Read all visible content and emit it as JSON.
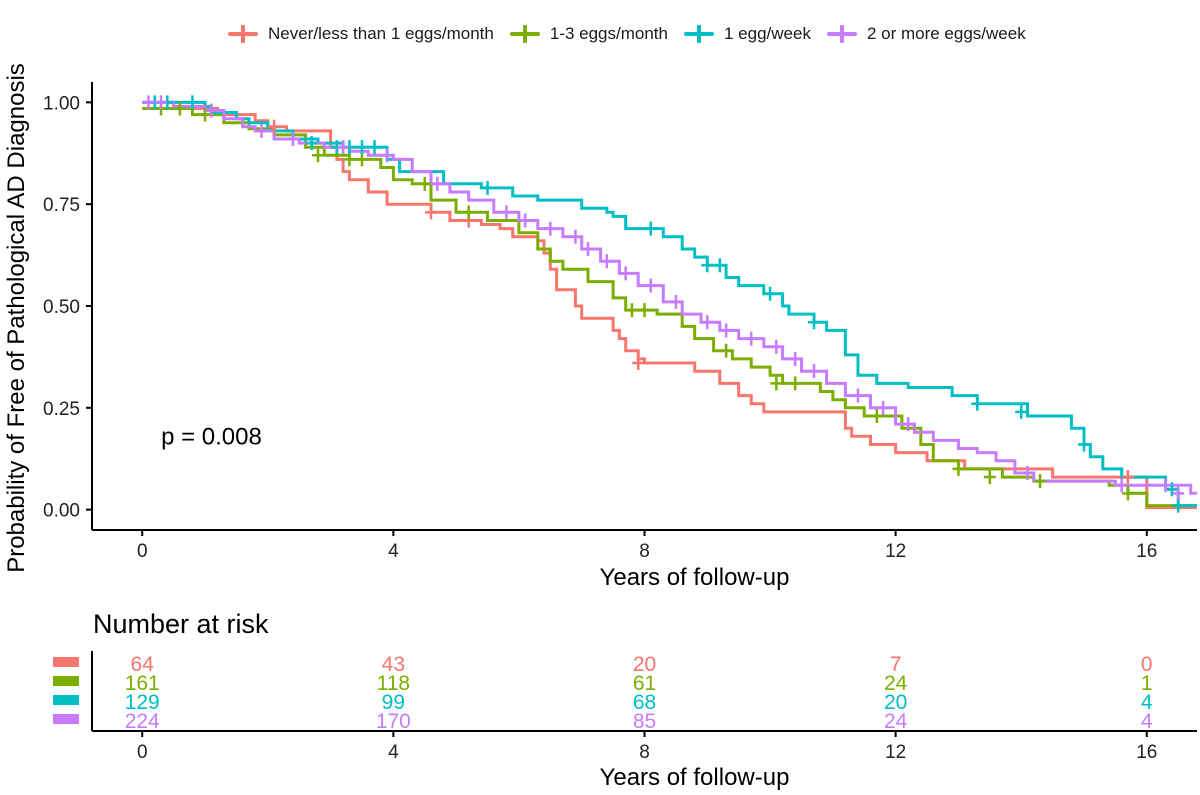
{
  "legend": {
    "items": [
      {
        "label": "Never/less than 1 eggs/month",
        "color": "#F8766D"
      },
      {
        "label": "1-3 eggs/month",
        "color": "#7CAE00"
      },
      {
        "label": "1 egg/week",
        "color": "#00BFC4"
      },
      {
        "label": "2 or more eggs/week",
        "color": "#C77CFF"
      }
    ]
  },
  "chart_data": {
    "type": "line",
    "subtype": "kaplan-meier step curves with censor marks",
    "ylabel": "Probability of Free of Pathological AD Diagnosis",
    "xlabel": "Years of follow-up",
    "xlim": [
      -0.8,
      16.8
    ],
    "ylim": [
      -0.05,
      1.05
    ],
    "x_ticks": [
      "0",
      "4",
      "8",
      "12",
      "16"
    ],
    "y_ticks": [
      "0.00",
      "0.25",
      "0.50",
      "0.75",
      "1.00"
    ],
    "annotation": "p = 0.008",
    "series": [
      {
        "name": "Never/less than 1 eggs/month",
        "color": "#F8766D",
        "steps": [
          [
            0,
            1.0
          ],
          [
            0.6,
            0.985
          ],
          [
            1.2,
            0.97
          ],
          [
            1.8,
            0.955
          ],
          [
            2.0,
            0.94
          ],
          [
            2.3,
            0.93
          ],
          [
            3.0,
            0.89
          ],
          [
            3.1,
            0.86
          ],
          [
            3.2,
            0.83
          ],
          [
            3.3,
            0.81
          ],
          [
            3.6,
            0.78
          ],
          [
            3.9,
            0.75
          ],
          [
            4.6,
            0.73
          ],
          [
            4.9,
            0.71
          ],
          [
            5.4,
            0.7
          ],
          [
            5.7,
            0.69
          ],
          [
            5.9,
            0.67
          ],
          [
            6.3,
            0.66
          ],
          [
            6.4,
            0.63
          ],
          [
            6.5,
            0.59
          ],
          [
            6.6,
            0.54
          ],
          [
            6.9,
            0.5
          ],
          [
            7.0,
            0.47
          ],
          [
            7.5,
            0.44
          ],
          [
            7.6,
            0.42
          ],
          [
            7.7,
            0.39
          ],
          [
            7.9,
            0.37
          ],
          [
            8.0,
            0.36
          ],
          [
            8.8,
            0.34
          ],
          [
            9.2,
            0.31
          ],
          [
            9.5,
            0.28
          ],
          [
            9.7,
            0.26
          ],
          [
            9.9,
            0.24
          ],
          [
            10.5,
            0.24
          ],
          [
            11.2,
            0.2
          ],
          [
            11.3,
            0.18
          ],
          [
            11.6,
            0.16
          ],
          [
            12.0,
            0.14
          ],
          [
            12.5,
            0.12
          ],
          [
            13.1,
            0.1
          ],
          [
            13.8,
            0.1
          ],
          [
            14.5,
            0.08
          ],
          [
            15.5,
            0.08
          ],
          [
            16.0,
            0.005
          ],
          [
            16.8,
            0.005
          ]
        ],
        "censors": [
          [
            2.1,
            0.94
          ],
          [
            4.6,
            0.73
          ],
          [
            5.2,
            0.71
          ],
          [
            7.9,
            0.36
          ],
          [
            15.7,
            0.08
          ]
        ]
      },
      {
        "name": "1-3 eggs/month",
        "color": "#7CAE00",
        "steps": [
          [
            0,
            0.985
          ],
          [
            0.8,
            0.97
          ],
          [
            1.3,
            0.95
          ],
          [
            1.7,
            0.935
          ],
          [
            2.1,
            0.92
          ],
          [
            2.6,
            0.89
          ],
          [
            2.9,
            0.87
          ],
          [
            3.3,
            0.86
          ],
          [
            3.8,
            0.84
          ],
          [
            4.0,
            0.81
          ],
          [
            4.3,
            0.8
          ],
          [
            4.6,
            0.76
          ],
          [
            5.0,
            0.73
          ],
          [
            5.5,
            0.71
          ],
          [
            6.0,
            0.68
          ],
          [
            6.3,
            0.64
          ],
          [
            6.5,
            0.61
          ],
          [
            6.7,
            0.59
          ],
          [
            7.1,
            0.56
          ],
          [
            7.5,
            0.52
          ],
          [
            7.7,
            0.49
          ],
          [
            8.2,
            0.48
          ],
          [
            8.6,
            0.45
          ],
          [
            8.8,
            0.42
          ],
          [
            9.1,
            0.39
          ],
          [
            9.4,
            0.37
          ],
          [
            9.7,
            0.35
          ],
          [
            10.0,
            0.33
          ],
          [
            10.2,
            0.31
          ],
          [
            10.8,
            0.29
          ],
          [
            11.0,
            0.27
          ],
          [
            11.2,
            0.25
          ],
          [
            11.5,
            0.23
          ],
          [
            11.8,
            0.23
          ],
          [
            12.1,
            0.2
          ],
          [
            12.4,
            0.16
          ],
          [
            12.6,
            0.12
          ],
          [
            13.0,
            0.1
          ],
          [
            13.4,
            0.1
          ],
          [
            13.7,
            0.08
          ],
          [
            14.2,
            0.07
          ],
          [
            15.4,
            0.06
          ],
          [
            15.7,
            0.04
          ],
          [
            16.0,
            0.01
          ],
          [
            16.8,
            0.01
          ]
        ],
        "censors": [
          [
            0.3,
            0.985
          ],
          [
            0.6,
            0.985
          ],
          [
            1.0,
            0.97
          ],
          [
            2.8,
            0.87
          ],
          [
            3.3,
            0.86
          ],
          [
            3.5,
            0.86
          ],
          [
            4.5,
            0.8
          ],
          [
            5.2,
            0.73
          ],
          [
            7.8,
            0.49
          ],
          [
            8.0,
            0.49
          ],
          [
            9.3,
            0.39
          ],
          [
            10.1,
            0.31
          ],
          [
            10.4,
            0.31
          ],
          [
            11.7,
            0.23
          ],
          [
            13.0,
            0.1
          ],
          [
            13.5,
            0.08
          ],
          [
            14.3,
            0.07
          ],
          [
            15.7,
            0.04
          ]
        ]
      },
      {
        "name": "1 egg/week",
        "color": "#00BFC4",
        "steps": [
          [
            0,
            1.0
          ],
          [
            1.0,
            0.99
          ],
          [
            1.1,
            0.975
          ],
          [
            1.5,
            0.96
          ],
          [
            1.7,
            0.95
          ],
          [
            2.0,
            0.93
          ],
          [
            2.4,
            0.91
          ],
          [
            2.8,
            0.9
          ],
          [
            3.2,
            0.89
          ],
          [
            3.9,
            0.86
          ],
          [
            4.1,
            0.83
          ],
          [
            4.8,
            0.8
          ],
          [
            5.4,
            0.79
          ],
          [
            5.9,
            0.77
          ],
          [
            6.3,
            0.76
          ],
          [
            7.0,
            0.74
          ],
          [
            7.4,
            0.73
          ],
          [
            7.5,
            0.72
          ],
          [
            7.7,
            0.69
          ],
          [
            8.3,
            0.67
          ],
          [
            8.6,
            0.64
          ],
          [
            8.8,
            0.62
          ],
          [
            9.0,
            0.6
          ],
          [
            9.3,
            0.57
          ],
          [
            9.5,
            0.55
          ],
          [
            9.9,
            0.53
          ],
          [
            10.2,
            0.5
          ],
          [
            10.3,
            0.48
          ],
          [
            10.7,
            0.46
          ],
          [
            10.9,
            0.44
          ],
          [
            11.2,
            0.38
          ],
          [
            11.4,
            0.33
          ],
          [
            11.7,
            0.31
          ],
          [
            12.2,
            0.3
          ],
          [
            12.9,
            0.28
          ],
          [
            13.3,
            0.26
          ],
          [
            14.1,
            0.23
          ],
          [
            14.8,
            0.2
          ],
          [
            15.0,
            0.16
          ],
          [
            15.1,
            0.13
          ],
          [
            15.3,
            0.1
          ],
          [
            15.6,
            0.08
          ],
          [
            16.3,
            0.05
          ],
          [
            16.5,
            0.01
          ],
          [
            16.8,
            0.01
          ]
        ],
        "censors": [
          [
            0.2,
            1.0
          ],
          [
            0.4,
            1.0
          ],
          [
            0.8,
            1.0
          ],
          [
            2.7,
            0.9
          ],
          [
            3.1,
            0.89
          ],
          [
            3.3,
            0.89
          ],
          [
            3.5,
            0.89
          ],
          [
            3.7,
            0.89
          ],
          [
            5.5,
            0.79
          ],
          [
            8.1,
            0.69
          ],
          [
            9.0,
            0.6
          ],
          [
            9.2,
            0.6
          ],
          [
            10.0,
            0.53
          ],
          [
            10.7,
            0.46
          ],
          [
            13.3,
            0.26
          ],
          [
            14.0,
            0.24
          ],
          [
            15.0,
            0.16
          ],
          [
            16.4,
            0.05
          ],
          [
            16.5,
            0.01
          ]
        ]
      },
      {
        "name": "2 or more eggs/week",
        "color": "#C77CFF",
        "steps": [
          [
            0,
            1.0
          ],
          [
            0.5,
            0.99
          ],
          [
            1.0,
            0.98
          ],
          [
            1.3,
            0.96
          ],
          [
            1.6,
            0.94
          ],
          [
            1.8,
            0.93
          ],
          [
            2.1,
            0.91
          ],
          [
            2.5,
            0.9
          ],
          [
            2.9,
            0.89
          ],
          [
            3.3,
            0.88
          ],
          [
            3.6,
            0.87
          ],
          [
            4.0,
            0.86
          ],
          [
            4.3,
            0.83
          ],
          [
            4.6,
            0.8
          ],
          [
            4.9,
            0.78
          ],
          [
            5.2,
            0.76
          ],
          [
            5.6,
            0.73
          ],
          [
            6.0,
            0.71
          ],
          [
            6.3,
            0.69
          ],
          [
            6.7,
            0.67
          ],
          [
            7.0,
            0.64
          ],
          [
            7.3,
            0.61
          ],
          [
            7.6,
            0.58
          ],
          [
            7.9,
            0.55
          ],
          [
            8.3,
            0.51
          ],
          [
            8.6,
            0.48
          ],
          [
            8.9,
            0.46
          ],
          [
            9.2,
            0.44
          ],
          [
            9.5,
            0.42
          ],
          [
            9.9,
            0.4
          ],
          [
            10.2,
            0.37
          ],
          [
            10.5,
            0.34
          ],
          [
            10.9,
            0.31
          ],
          [
            11.2,
            0.28
          ],
          [
            11.6,
            0.25
          ],
          [
            12.0,
            0.21
          ],
          [
            12.3,
            0.19
          ],
          [
            12.6,
            0.17
          ],
          [
            13.0,
            0.15
          ],
          [
            13.3,
            0.14
          ],
          [
            13.6,
            0.12
          ],
          [
            13.9,
            0.09
          ],
          [
            14.2,
            0.07
          ],
          [
            14.8,
            0.07
          ],
          [
            15.5,
            0.06
          ],
          [
            16.7,
            0.04
          ],
          [
            16.8,
            0.04
          ]
        ],
        "censors": [
          [
            0.1,
            1.0
          ],
          [
            0.3,
            1.0
          ],
          [
            1.1,
            0.98
          ],
          [
            1.9,
            0.93
          ],
          [
            2.4,
            0.91
          ],
          [
            3.2,
            0.89
          ],
          [
            3.9,
            0.87
          ],
          [
            4.7,
            0.8
          ],
          [
            5.8,
            0.73
          ],
          [
            6.1,
            0.71
          ],
          [
            6.5,
            0.69
          ],
          [
            6.9,
            0.67
          ],
          [
            7.1,
            0.64
          ],
          [
            7.4,
            0.61
          ],
          [
            7.7,
            0.58
          ],
          [
            8.1,
            0.55
          ],
          [
            8.5,
            0.51
          ],
          [
            9.0,
            0.46
          ],
          [
            9.3,
            0.44
          ],
          [
            9.7,
            0.42
          ],
          [
            10.1,
            0.4
          ],
          [
            10.4,
            0.37
          ],
          [
            10.7,
            0.34
          ],
          [
            11.4,
            0.28
          ],
          [
            11.8,
            0.25
          ],
          [
            12.2,
            0.21
          ],
          [
            14.1,
            0.09
          ],
          [
            15.6,
            0.06
          ],
          [
            16.3,
            0.06
          ],
          [
            16.5,
            0.04
          ]
        ]
      }
    ]
  },
  "risk_table": {
    "title": "Number at risk",
    "xlabel": "Years of follow-up",
    "time_points": [
      "0",
      "4",
      "8",
      "12",
      "16"
    ],
    "rows": [
      {
        "color": "#F8766D",
        "counts": [
          "64",
          "43",
          "20",
          "7",
          "0"
        ]
      },
      {
        "color": "#7CAE00",
        "counts": [
          "161",
          "118",
          "61",
          "24",
          "1"
        ]
      },
      {
        "color": "#00BFC4",
        "counts": [
          "129",
          "99",
          "68",
          "20",
          "4"
        ]
      },
      {
        "color": "#C77CFF",
        "counts": [
          "224",
          "170",
          "85",
          "24",
          "4"
        ]
      }
    ]
  }
}
